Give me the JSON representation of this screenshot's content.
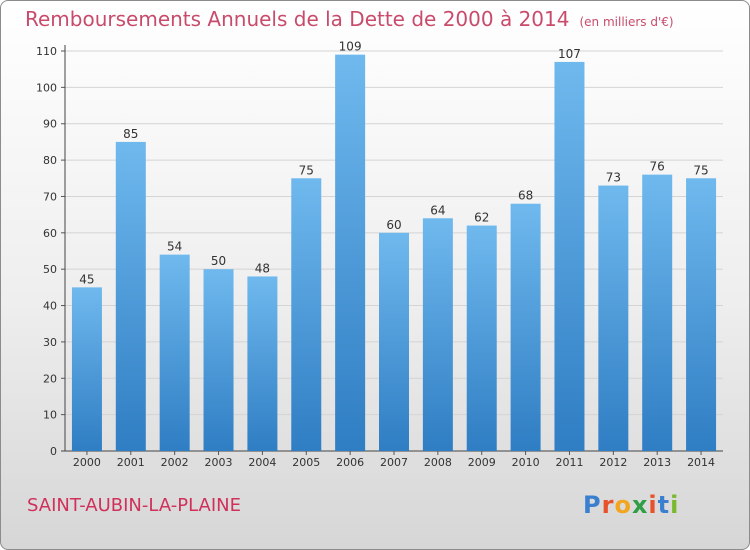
{
  "title": "Remboursements Annuels de la Dette de 2000 à 2014",
  "subtitle": "(en milliers d'€)",
  "town": "SAINT-AUBIN-LA-PLAINE",
  "logo": {
    "text": "Proxiti",
    "letters": [
      "P",
      "r",
      "o",
      "x",
      "i",
      "t",
      "i"
    ],
    "colors": [
      "#3a7fd0",
      "#e8522a",
      "#f2a61f",
      "#2f9e44",
      "#e8522a",
      "#3a7fd0",
      "#7ab82e"
    ]
  },
  "colors": {
    "bar_light": "#6fb9ee",
    "bar_dark": "#2f7dc3",
    "title": "#c94b6b",
    "town": "#d0305a"
  },
  "chart_data": {
    "type": "bar",
    "categories": [
      "2000",
      "2001",
      "2002",
      "2003",
      "2004",
      "2005",
      "2006",
      "2007",
      "2008",
      "2009",
      "2010",
      "2011",
      "2012",
      "2013",
      "2014"
    ],
    "values": [
      45,
      85,
      54,
      50,
      48,
      75,
      109,
      60,
      64,
      62,
      68,
      107,
      73,
      76,
      75
    ],
    "ylim": [
      0,
      110
    ],
    "yticks": [
      0,
      10,
      20,
      30,
      40,
      50,
      60,
      70,
      80,
      90,
      100,
      110
    ],
    "grid": true
  }
}
